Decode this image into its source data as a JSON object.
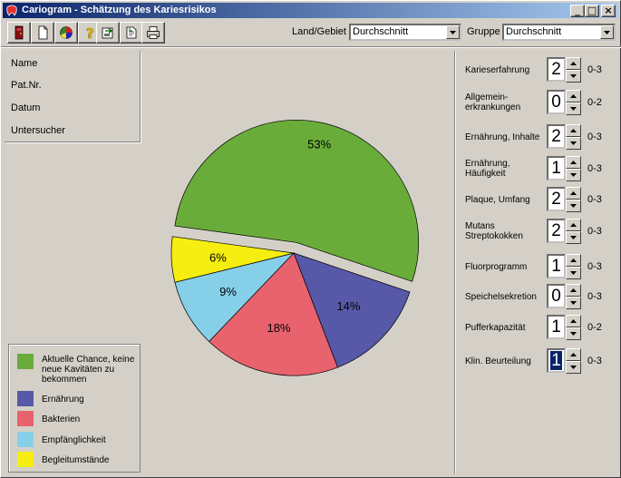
{
  "window": {
    "title": "Cariogram - Schätzung des Kariesrisikos",
    "minimize_glyph": "_",
    "maximize_glyph": "□",
    "close_glyph": "×"
  },
  "toolbar": {
    "buttons": [
      {
        "name": "exit-door-icon"
      },
      {
        "name": "new-document-icon"
      },
      {
        "name": "pie-chart-icon"
      },
      {
        "name": "help-question-icon"
      },
      {
        "name": "export-icon"
      },
      {
        "name": "import-icon"
      },
      {
        "name": "print-icon"
      }
    ],
    "country_label": "Land/Gebiet",
    "country_value": "Durchschnitt",
    "group_label": "Gruppe",
    "group_value": "Durchschnitt"
  },
  "patient": {
    "name_label": "Name",
    "patnr_label": "Pat.Nr.",
    "date_label": "Datum",
    "examiner_label": "Untersucher"
  },
  "chart_data": {
    "type": "pie",
    "title": "",
    "slices": [
      {
        "label": "53%",
        "value": 53,
        "color": "#6aac3a",
        "exploded": true
      },
      {
        "label": "14%",
        "value": 14,
        "color": "#5858a8",
        "exploded": false
      },
      {
        "label": "18%",
        "value": 18,
        "color": "#e8636e",
        "exploded": false
      },
      {
        "label": "9%",
        "value": 9,
        "color": "#86cfe8",
        "exploded": false
      },
      {
        "label": "6%",
        "value": 6,
        "color": "#f5ee10",
        "exploded": false
      }
    ]
  },
  "legend": {
    "items": [
      {
        "text": "Aktuelle Chance, keine neue Kavitäten zu bekommen",
        "color": "#6aac3a"
      },
      {
        "text": "Ernährung",
        "color": "#5858a8"
      },
      {
        "text": "Bakterien",
        "color": "#e8636e"
      },
      {
        "text": "Empfänglichkeit",
        "color": "#86cfe8"
      },
      {
        "text": "Begleitumstände",
        "color": "#f5ee10"
      }
    ]
  },
  "factors": [
    {
      "label": "Karieserfahrung",
      "value": "2",
      "range": "0-3"
    },
    {
      "label": "Allgemein-erkrankungen",
      "value": "0",
      "range": "0-2"
    },
    {
      "label": "Ernährung, Inhalte",
      "value": "2",
      "range": "0-3"
    },
    {
      "label": "Ernährung, Häufigkeit",
      "value": "1",
      "range": "0-3"
    },
    {
      "label": "Plaque, Umfang",
      "value": "2",
      "range": "0-3"
    },
    {
      "label": "Mutans Streptokokken",
      "value": "2",
      "range": "0-3"
    },
    {
      "label": "Fluorprogramm",
      "value": "1",
      "range": "0-3"
    },
    {
      "label": "Speichelsekretion",
      "value": "0",
      "range": "0-3"
    },
    {
      "label": "Pufferkapazität",
      "value": "1",
      "range": "0-2"
    },
    {
      "label": "Klin. Beurteilung",
      "value": "1",
      "range": "0-3",
      "selected": true
    }
  ]
}
